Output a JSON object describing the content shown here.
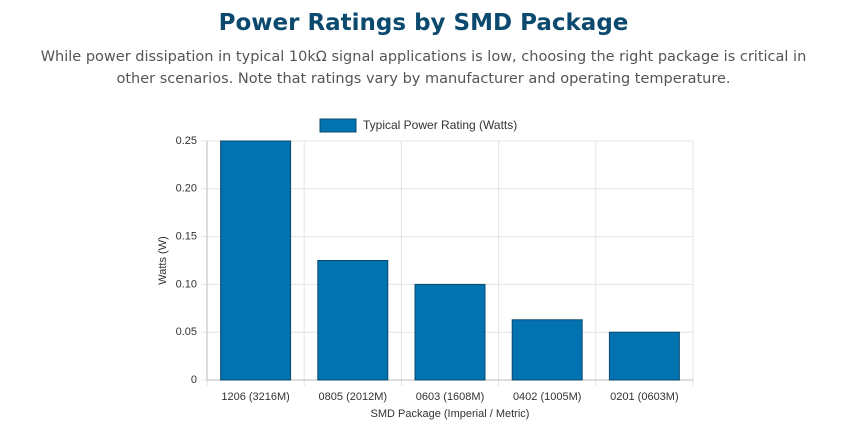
{
  "chart_data": {
    "type": "bar",
    "title": "Power Ratings by SMD Package",
    "subtitle": "While power dissipation in typical 10kΩ signal applications is low, choosing the right package is critical in other scenarios. Note that ratings vary by manufacturer and operating temperature.",
    "categories": [
      "1206 (3216M)",
      "0805 (2012M)",
      "0603 (1608M)",
      "0402 (1005M)",
      "0201 (0603M)"
    ],
    "series": [
      {
        "name": "Typical Power Rating (Watts)",
        "color": "#0272b0",
        "values": [
          0.25,
          0.125,
          0.1,
          0.063,
          0.05
        ]
      }
    ],
    "x_label": "SMD Package (Imperial / Metric)",
    "y_label": "Watts (W)",
    "ylim": [
      0,
      0.25
    ],
    "yticks": [
      0,
      0.05,
      {
        "value": 0.1,
        "label": "0.10"
      },
      {
        "value": 0.15,
        "label": "0.15"
      },
      {
        "value": 0.2,
        "label": "0.20"
      },
      0.25
    ],
    "grid": true,
    "legend": "top"
  }
}
